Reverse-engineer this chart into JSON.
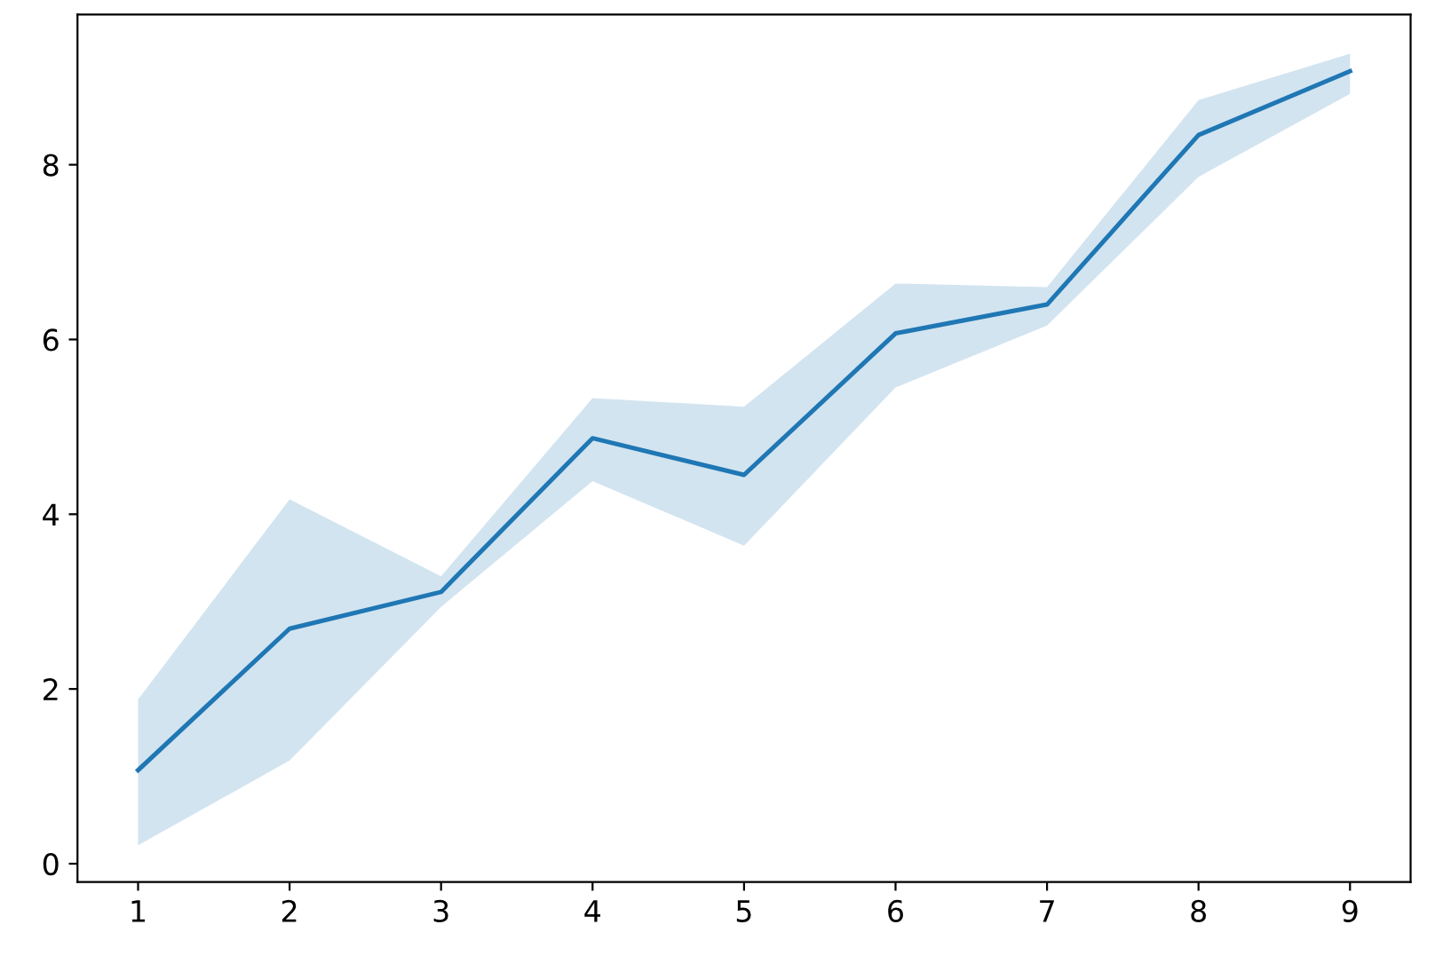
{
  "chart_data": {
    "type": "line",
    "x": [
      1,
      2,
      3,
      4,
      5,
      6,
      7,
      8,
      9
    ],
    "series": [
      {
        "color": "#1f77b4",
        "values": [
          1.07,
          2.69,
          3.11,
          4.87,
          4.45,
          6.07,
          6.4,
          8.34,
          9.07
        ],
        "lower": [
          0.21,
          1.18,
          2.94,
          4.38,
          3.64,
          5.45,
          6.16,
          7.86,
          8.81
        ],
        "upper": [
          1.88,
          4.17,
          3.29,
          5.33,
          5.23,
          6.64,
          6.6,
          8.74,
          9.27
        ]
      }
    ],
    "xlim": [
      0.6,
      9.4
    ],
    "ylim": [
      -0.21,
      9.72
    ],
    "xticks": [
      1,
      2,
      3,
      4,
      5,
      6,
      7,
      8,
      9
    ],
    "yticks": [
      0,
      2,
      4,
      6,
      8
    ],
    "grid": false
  }
}
